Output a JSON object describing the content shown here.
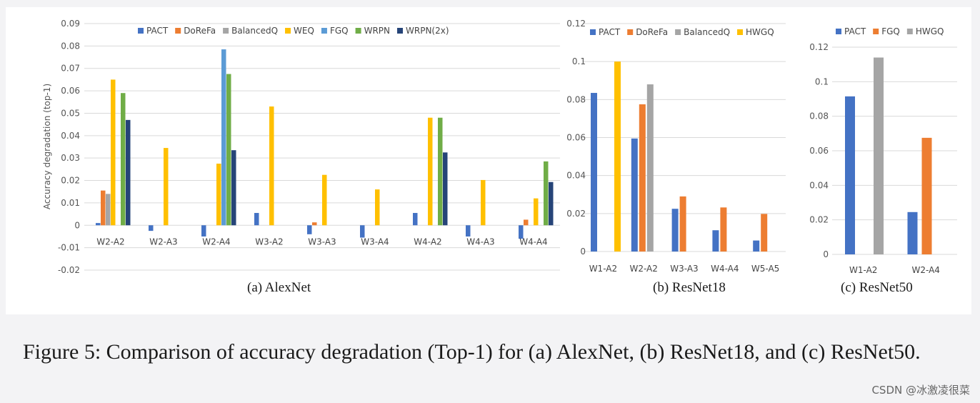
{
  "caption": "Figure 5: Comparison of accuracy degradation (Top-1) for (a) AlexNet, (b) ResNet18, and (c) ResNet50.",
  "watermark": "CSDN @冰激凌很菜",
  "chart_data": [
    {
      "type": "bar",
      "subcaption": "(a) AlexNet",
      "ylabel": "Accuracy degradation (top-1)",
      "ylim": [
        -0.02,
        0.09
      ],
      "yticks": [
        "-0.02",
        "-0.01",
        "0",
        "0.01",
        "0.02",
        "0.03",
        "0.04",
        "0.05",
        "0.06",
        "0.07",
        "0.08",
        "0.09"
      ],
      "grid": true,
      "legend": "top",
      "categories": [
        "W2-A2",
        "W2-A3",
        "W2-A4",
        "W3-A2",
        "W3-A3",
        "W3-A4",
        "W4-A2",
        "W4-A3",
        "W4-A4"
      ],
      "series": [
        {
          "name": "PACT",
          "color": "#4472c4",
          "values": [
            0.001,
            -0.0025,
            -0.005,
            0.0055,
            -0.004,
            -0.0055,
            0.0055,
            -0.005,
            -0.006
          ]
        },
        {
          "name": "DoReFa",
          "color": "#ed7d31",
          "values": [
            0.0155,
            null,
            null,
            null,
            0.0013,
            null,
            null,
            null,
            0.0025
          ]
        },
        {
          "name": "BalancedQ",
          "color": "#a5a5a5",
          "values": [
            0.014,
            null,
            null,
            null,
            null,
            null,
            null,
            null,
            null
          ]
        },
        {
          "name": "WEQ",
          "color": "#ffc000",
          "values": [
            0.065,
            0.0345,
            0.0275,
            0.053,
            0.0225,
            0.016,
            0.048,
            0.0202,
            0.012
          ]
        },
        {
          "name": "FGQ",
          "color": "#5b9bd5",
          "values": [
            null,
            null,
            0.0785,
            null,
            null,
            null,
            null,
            null,
            null
          ]
        },
        {
          "name": "WRPN",
          "color": "#70ad47",
          "values": [
            0.059,
            null,
            0.0675,
            null,
            null,
            null,
            0.048,
            null,
            0.0285
          ]
        },
        {
          "name": "WRPN(2x)",
          "color": "#264478",
          "values": [
            0.047,
            null,
            0.0335,
            null,
            null,
            null,
            0.0325,
            null,
            0.0193
          ]
        }
      ]
    },
    {
      "type": "bar",
      "subcaption": "(b) ResNet18",
      "ylim": [
        0,
        0.12
      ],
      "yticks": [
        "0",
        "0.02",
        "0.04",
        "0.06",
        "0.08",
        "0.1",
        "0.12"
      ],
      "grid": true,
      "legend": "top",
      "categories": [
        "W1-A2",
        "W2-A2",
        "W3-A3",
        "W4-A4",
        "W5-A5"
      ],
      "series": [
        {
          "name": "PACT",
          "color": "#4472c4",
          "values": [
            0.0835,
            0.0595,
            0.0225,
            0.0112,
            0.0058
          ]
        },
        {
          "name": "DoReFa",
          "color": "#ed7d31",
          "values": [
            null,
            0.0775,
            0.029,
            0.0232,
            0.0198
          ]
        },
        {
          "name": "BalancedQ",
          "color": "#a5a5a5",
          "values": [
            null,
            0.088,
            null,
            null,
            null
          ]
        },
        {
          "name": "HWGQ",
          "color": "#ffc000",
          "values": [
            0.1,
            null,
            null,
            null,
            null
          ]
        }
      ]
    },
    {
      "type": "bar",
      "subcaption": "(c) ResNet50",
      "ylim": [
        0,
        0.12
      ],
      "yticks": [
        "0",
        "0.02",
        "0.04",
        "0.06",
        "0.08",
        "0.1",
        "0.12"
      ],
      "grid": true,
      "legend": "top",
      "categories": [
        "W1-A2",
        "W2-A4"
      ],
      "series": [
        {
          "name": "PACT",
          "color": "#4472c4",
          "values": [
            0.0915,
            0.0245
          ]
        },
        {
          "name": "FGQ",
          "color": "#ed7d31",
          "values": [
            null,
            0.0675
          ]
        },
        {
          "name": "HWGQ",
          "color": "#a5a5a5",
          "values": [
            0.114,
            null
          ]
        }
      ]
    }
  ]
}
